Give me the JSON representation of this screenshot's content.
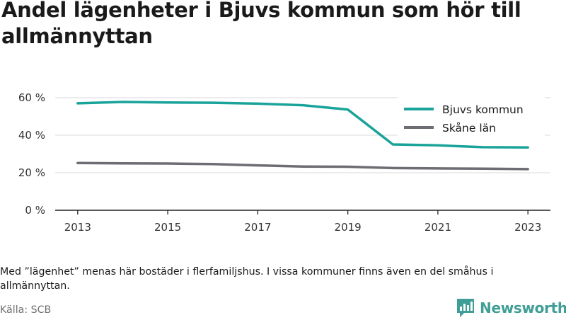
{
  "title": "Andel lägenheter i Bjuvs kommun som hör till allmännyttan",
  "note": "Med ”lägenhet” menas här bostäder i flerfamiljshus. I vissa kommuner finns även en del småhus i allmännyttan.",
  "source": "Källa: SCB",
  "brand": {
    "name": "Newsworthy",
    "icon": "newsworthy-logo-icon",
    "color": "#3f9e95"
  },
  "chart_data": {
    "type": "line",
    "x": [
      2013,
      2014,
      2015,
      2016,
      2017,
      2018,
      2019,
      2020,
      2021,
      2022,
      2023
    ],
    "x_ticks": [
      {
        "value": 2013,
        "label": "2013"
      },
      {
        "value": 2015,
        "label": "2015"
      },
      {
        "value": 2017,
        "label": "2017"
      },
      {
        "value": 2019,
        "label": "2019"
      },
      {
        "value": 2021,
        "label": "2021"
      },
      {
        "value": 2023,
        "label": "2023"
      }
    ],
    "y_ticks": [
      {
        "value": 0,
        "label": "0 %"
      },
      {
        "value": 20,
        "label": "20 %"
      },
      {
        "value": 40,
        "label": "40 %"
      },
      {
        "value": 60,
        "label": "60 %"
      }
    ],
    "xlim": [
      2012.5,
      2023.5
    ],
    "ylim": [
      0,
      63
    ],
    "grid": true,
    "legend_position": "top-right",
    "series": [
      {
        "name": "Bjuvs kommun",
        "color": "#1aa39a",
        "values": [
          57,
          57.7,
          57.4,
          57.3,
          56.8,
          56.0,
          53.7,
          35.1,
          34.6,
          33.6,
          33.5
        ]
      },
      {
        "name": "Skåne län",
        "color": "#6d6d73",
        "values": [
          25.2,
          25.0,
          24.9,
          24.6,
          23.9,
          23.3,
          23.2,
          22.5,
          22.3,
          22.2,
          21.9
        ]
      }
    ]
  }
}
